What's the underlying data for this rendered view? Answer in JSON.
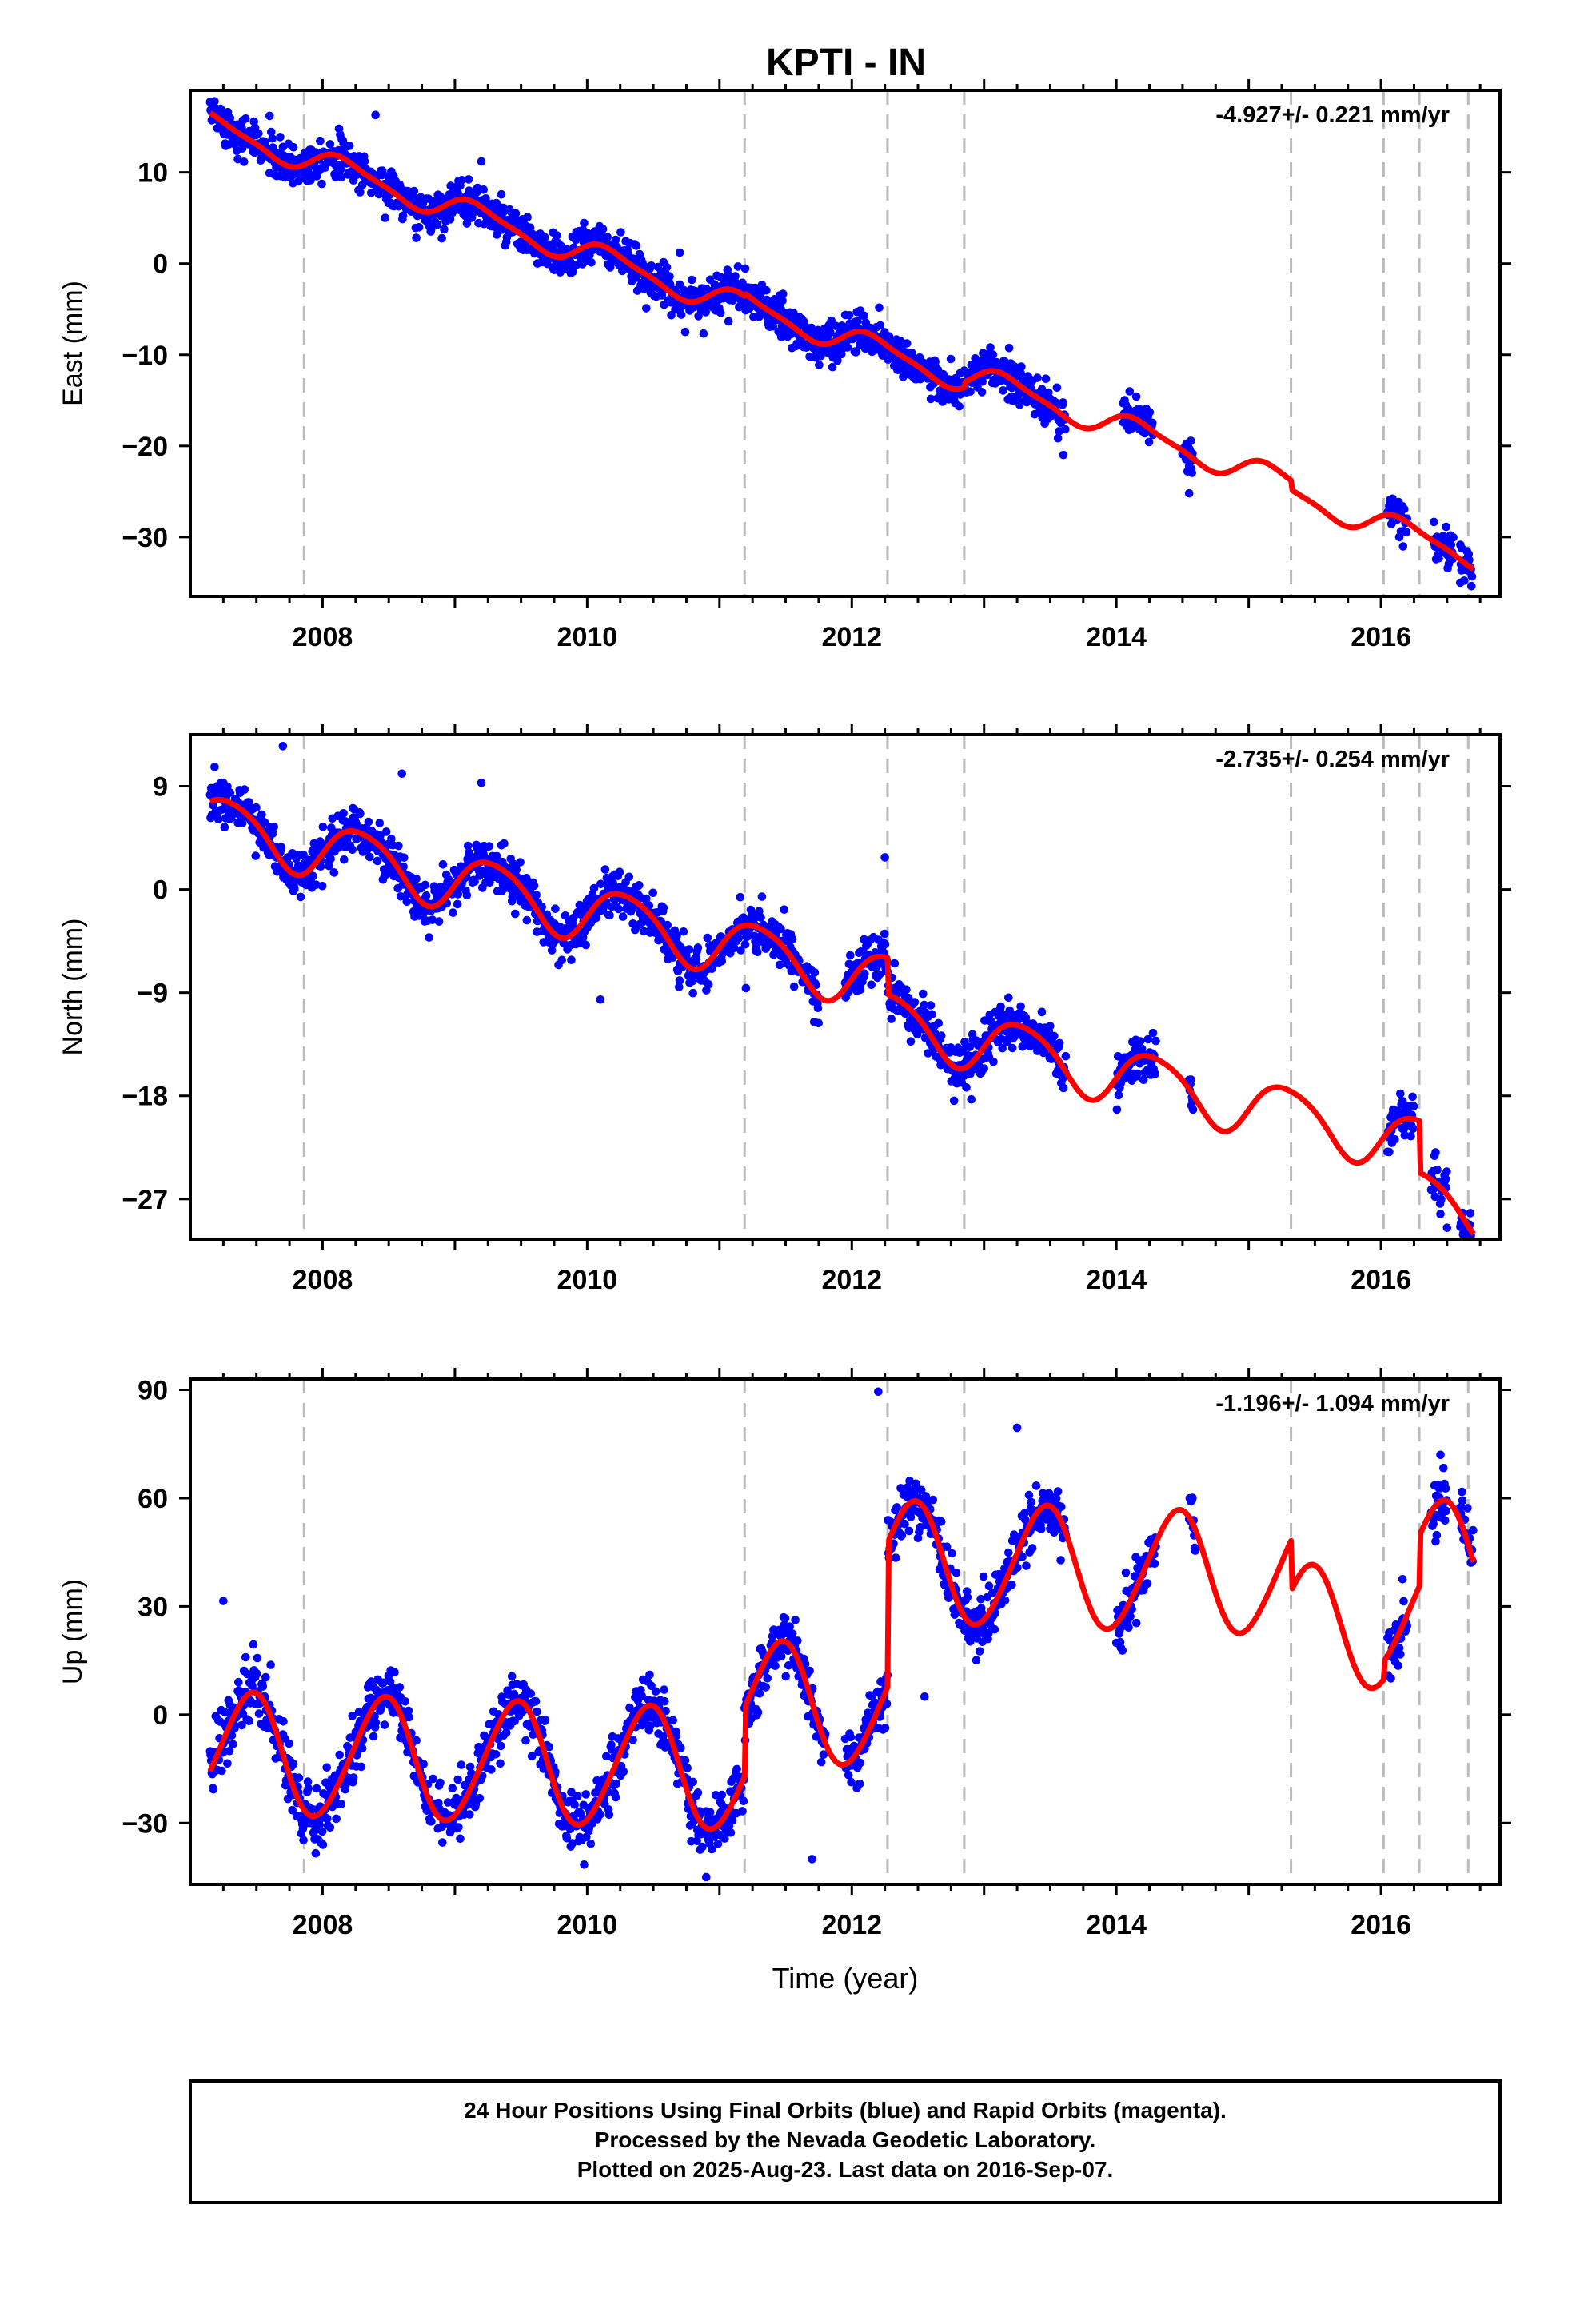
{
  "title": "KPTI - IN",
  "footer": {
    "line1": "24 Hour Positions Using Final Orbits (blue) and Rapid Orbits (magenta).",
    "line2": "Processed by the Nevada Geodetic Laboratory.",
    "line3": "Plotted on 2025-Aug-23. Last data on 2016-Sep-07."
  },
  "colors": {
    "final_orbits": "#0000ff",
    "rapid_orbits": "#ff00ff",
    "model": "#ff0000",
    "event_lines": "#bbbbbb",
    "frame": "#000000"
  },
  "chart_data": [
    {
      "type": "scatter",
      "name": "east",
      "ylabel": "East (mm)",
      "xlabel": "",
      "rate_label": "-4.927+/- 0.221 mm/yr",
      "xlim": [
        2007.0,
        2016.9
      ],
      "ylim": [
        -36.5,
        19
      ],
      "yticks": [
        10,
        0,
        -10,
        -20,
        -30
      ],
      "ytick_labels": [
        "10",
        "0",
        "−10",
        "−20",
        "−30"
      ],
      "xticks": [
        2008,
        2010,
        2012,
        2014,
        2016
      ],
      "xtick_labels": [
        "2008",
        "2010",
        "2012",
        "2014",
        "2016"
      ],
      "event_lines": [
        2007.86,
        2011.19,
        2012.27,
        2012.85,
        2015.32,
        2016.02,
        2016.29,
        2016.66
      ],
      "data_segments": [
        [
          2007.15,
          2013.62
        ],
        [
          2014.05,
          2014.28
        ],
        [
          2014.5,
          2014.58
        ],
        [
          2016.05,
          2016.2
        ],
        [
          2016.4,
          2016.55
        ],
        [
          2016.6,
          2016.69
        ]
      ],
      "model": {
        "rate": -4.927,
        "offset": 15.1,
        "annual_sin": 1.2,
        "annual_cos": 0.6,
        "semi_sin": 0.2,
        "semi_cos": 0.3,
        "steps": [
          {
            "at": 2011.19,
            "value": 0.3
          },
          {
            "at": 2012.85,
            "value": 0.6
          },
          {
            "at": 2015.32,
            "value": -1.0
          }
        ]
      },
      "noise": 1.1,
      "outliers": [
        [
          2007.6,
          16.2
        ],
        [
          2008.4,
          16.3
        ],
        [
          2009.2,
          11.2
        ],
        [
          2010.7,
          1.2
        ],
        [
          2013.6,
          -21
        ],
        [
          2014.55,
          -25.2
        ],
        [
          2016.6,
          -35
        ]
      ]
    },
    {
      "type": "scatter",
      "name": "north",
      "ylabel": "North (mm)",
      "xlabel": "",
      "rate_label": "-2.735+/- 0.254 mm/yr",
      "xlim": [
        2007.0,
        2016.9
      ],
      "ylim": [
        -30.5,
        13.5
      ],
      "yticks": [
        9,
        0,
        -9,
        -18,
        -27
      ],
      "ytick_labels": [
        "9",
        "0",
        "−9",
        "−18",
        "−27"
      ],
      "xticks": [
        2008,
        2010,
        2012,
        2014,
        2016
      ],
      "xtick_labels": [
        "2008",
        "2010",
        "2012",
        "2014",
        "2016"
      ],
      "event_lines": [
        2007.86,
        2011.19,
        2012.27,
        2012.85,
        2015.32,
        2016.02,
        2016.29,
        2016.66
      ],
      "data_segments": [
        [
          2007.15,
          2011.75
        ],
        [
          2011.95,
          2013.62
        ],
        [
          2014.0,
          2014.3
        ],
        [
          2014.55,
          2014.58
        ],
        [
          2016.05,
          2016.25
        ],
        [
          2016.38,
          2016.5
        ],
        [
          2016.6,
          2016.7
        ]
      ],
      "model": {
        "rate": -2.735,
        "offset": 5.85,
        "annual_sin": 2.4,
        "annual_cos": -0.6,
        "semi_sin": 0.3,
        "semi_cos": 0.2,
        "steps": [
          {
            "at": 2012.27,
            "value": -3.2
          },
          {
            "at": 2016.29,
            "value": -4.5
          }
        ]
      },
      "noise": 1.0,
      "outliers": [
        [
          2007.7,
          12.5
        ],
        [
          2008.6,
          10.1
        ],
        [
          2009.2,
          9.3
        ],
        [
          2010.1,
          -9.6
        ],
        [
          2011.2,
          -8.6
        ],
        [
          2012.25,
          2.8
        ],
        [
          2016.5,
          -29.5
        ],
        [
          2016.45,
          -28.3
        ]
      ]
    },
    {
      "type": "scatter",
      "name": "up",
      "ylabel": "Up (mm)",
      "xlabel": "Time (year)",
      "rate_label": "-1.196+/- 1.094 mm/yr",
      "xlim": [
        2007.0,
        2016.9
      ],
      "ylim": [
        -47,
        93
      ],
      "yticks": [
        90,
        60,
        30,
        0,
        -30
      ],
      "ytick_labels": [
        "90",
        "60",
        "30",
        "0",
        "−30"
      ],
      "xticks": [
        2008,
        2010,
        2012,
        2014,
        2016
      ],
      "xtick_labels": [
        "2008",
        "2010",
        "2012",
        "2014",
        "2016"
      ],
      "event_lines": [
        2007.86,
        2011.19,
        2012.27,
        2012.85,
        2015.32,
        2016.02,
        2016.29,
        2016.66
      ],
      "data_segments": [
        [
          2007.15,
          2011.8
        ],
        [
          2011.95,
          2013.62
        ],
        [
          2014.0,
          2014.3
        ],
        [
          2014.55,
          2014.6
        ],
        [
          2016.05,
          2016.2
        ],
        [
          2016.38,
          2016.5
        ],
        [
          2016.6,
          2016.7
        ]
      ],
      "model": {
        "rate": -1.196,
        "offset": -10.6,
        "annual_sin": 4.6,
        "annual_cos": -16.0,
        "semi_sin": 1.0,
        "semi_cos": 1.0,
        "steps": [
          {
            "at": 2011.19,
            "value": 19
          },
          {
            "at": 2012.27,
            "value": 40
          },
          {
            "at": 2015.32,
            "value": -14
          },
          {
            "at": 2016.02,
            "value": 5
          },
          {
            "at": 2016.29,
            "value": 14
          }
        ]
      },
      "noise": 4.0,
      "outliers": [
        [
          2007.25,
          31.5
        ],
        [
          2012.2,
          89.5
        ],
        [
          2012.55,
          5
        ],
        [
          2013.25,
          79.5
        ],
        [
          2016.45,
          72
        ],
        [
          2010.9,
          -45
        ],
        [
          2011.7,
          -40
        ]
      ]
    }
  ]
}
